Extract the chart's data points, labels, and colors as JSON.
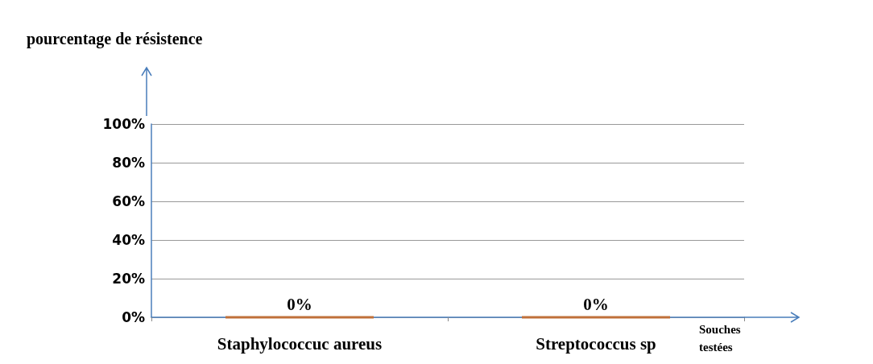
{
  "chart_data": {
    "type": "bar",
    "ylabel": "pourcentage de résistence",
    "xlabel": "Souches testées",
    "categories": [
      "Staphylococcuc aureus",
      "Streptococcus sp"
    ],
    "values": [
      0,
      0
    ],
    "value_labels": [
      "0%",
      "0%"
    ],
    "color": "#c0703a",
    "ylim": [
      0,
      100
    ],
    "yticks": [
      {
        "value": 0,
        "label": "0%"
      },
      {
        "value": 20,
        "label": "20%"
      },
      {
        "value": 40,
        "label": "40%"
      },
      {
        "value": 60,
        "label": "60%"
      },
      {
        "value": 80,
        "label": "80%"
      },
      {
        "value": 100,
        "label": "100%"
      }
    ],
    "grid": "y"
  }
}
